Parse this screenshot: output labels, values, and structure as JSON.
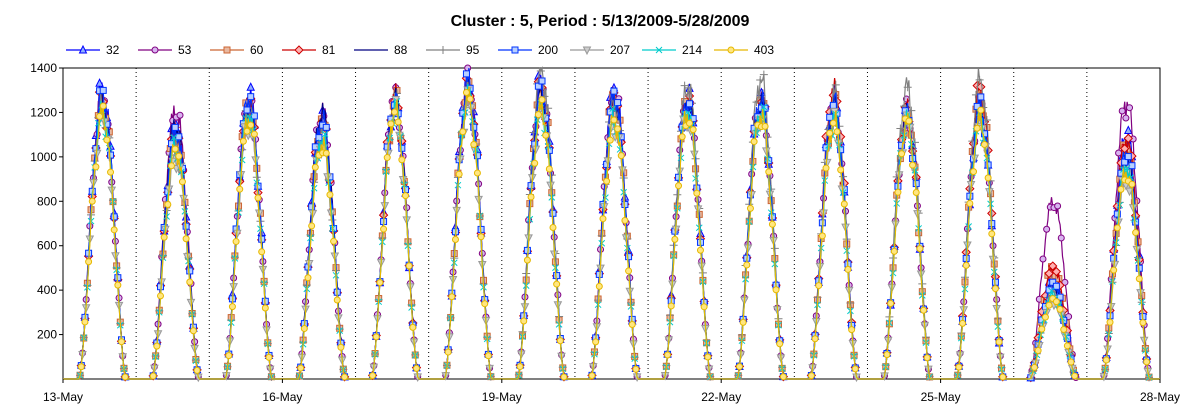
{
  "chart_data": {
    "type": "line",
    "title": "Cluster : 5, Period : 5/13/2009-5/28/2009",
    "xlabel": "",
    "ylabel": "",
    "x_range": [
      "2009-05-13",
      "2009-05-28"
    ],
    "x_tick_labels": [
      "13-May",
      "16-May",
      "19-May",
      "22-May",
      "25-May",
      "28-May"
    ],
    "ylim": [
      0,
      1400
    ],
    "y_tick_labels": [
      "200",
      "400",
      "600",
      "800",
      "1000",
      "1200",
      "1400"
    ],
    "grid": "vertical dotted lines at daily intervals",
    "legend": "top, single row",
    "categories": [
      "13-May",
      "14-May",
      "15-May",
      "16-May",
      "17-May",
      "18-May",
      "19-May",
      "20-May",
      "21-May",
      "22-May",
      "23-May",
      "24-May",
      "25-May",
      "26-May",
      "27-May"
    ],
    "series": [
      {
        "name": "32",
        "color": "#0000FF",
        "marker": "triangle",
        "values": [
          1300,
          1150,
          1280,
          1180,
          1260,
          1360,
          1330,
          1300,
          1280,
          1270,
          1260,
          1200,
          1200,
          450,
          1100
        ]
      },
      {
        "name": "53",
        "color": "#800080",
        "marker": "circle",
        "values": [
          1270,
          1210,
          1260,
          1200,
          1280,
          1340,
          1320,
          1290,
          1260,
          1250,
          1250,
          1190,
          1250,
          800,
          1250
        ]
      },
      {
        "name": "60",
        "color": "#CC6633",
        "marker": "square",
        "values": [
          1250,
          1100,
          1250,
          1150,
          1250,
          1320,
          1300,
          1280,
          1250,
          1240,
          1230,
          1180,
          1280,
          500,
          1050
        ]
      },
      {
        "name": "81",
        "color": "#CC0000",
        "marker": "diamond",
        "values": [
          1260,
          1120,
          1240,
          1160,
          1270,
          1330,
          1310,
          1270,
          1260,
          1260,
          1300,
          1200,
          1300,
          500,
          1080
        ]
      },
      {
        "name": "88",
        "color": "#000080",
        "marker": "none",
        "values": [
          1240,
          1150,
          1230,
          1200,
          1260,
          1310,
          1290,
          1260,
          1240,
          1250,
          1240,
          1180,
          1220,
          420,
          1000
        ]
      },
      {
        "name": "95",
        "color": "#808080",
        "marker": "plus",
        "values": [
          1230,
          1080,
          1210,
          1120,
          1240,
          1300,
          1390,
          1250,
          1320,
          1350,
          1280,
          1310,
          1340,
          400,
          950
        ]
      },
      {
        "name": "200",
        "color": "#0033FF",
        "marker": "square",
        "values": [
          1280,
          1120,
          1270,
          1170,
          1250,
          1340,
          1310,
          1280,
          1250,
          1260,
          1250,
          1180,
          1230,
          430,
          1020
        ]
      },
      {
        "name": "207",
        "color": "#999999",
        "marker": "triangle-down",
        "values": [
          1180,
          1000,
          1150,
          1050,
          1200,
          1250,
          1200,
          1150,
          1180,
          1180,
          1150,
          1150,
          1150,
          350,
          900
        ]
      },
      {
        "name": "214",
        "color": "#00CCCC",
        "marker": "x",
        "values": [
          1200,
          1050,
          1180,
          1080,
          1220,
          1270,
          1220,
          1170,
          1200,
          1200,
          1170,
          1160,
          1170,
          380,
          950
        ]
      },
      {
        "name": "403",
        "color": "#E6B800",
        "marker": "circle",
        "values": [
          1190,
          1030,
          1170,
          1060,
          1210,
          1260,
          1210,
          1160,
          1190,
          1190,
          1160,
          1150,
          1160,
          360,
          930
        ]
      }
    ]
  }
}
